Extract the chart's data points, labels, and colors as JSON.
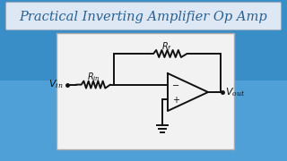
{
  "title": "Practical Inverting Amplifier Op Amp",
  "title_color": "#2a6090",
  "title_bg_top": "#d0dff0",
  "title_bg_bot": "#b8d0e8",
  "title_border": "#8899aa",
  "bg_color_top": "#2a7ab8",
  "bg_color_bot": "#4a9ad0",
  "circuit_bg": "#f0f0f0",
  "circuit_border": "#aaaaaa",
  "line_color": "#111111",
  "Vin_label": "$V_{\\mathregular{in}}$",
  "Vout_label": "$V_{\\mathregular{out}}$",
  "Rin_label": "$R_{\\mathregular{in}}$",
  "Rf_label": "$R_f$",
  "figsize": [
    3.2,
    1.8
  ],
  "dpi": 100
}
